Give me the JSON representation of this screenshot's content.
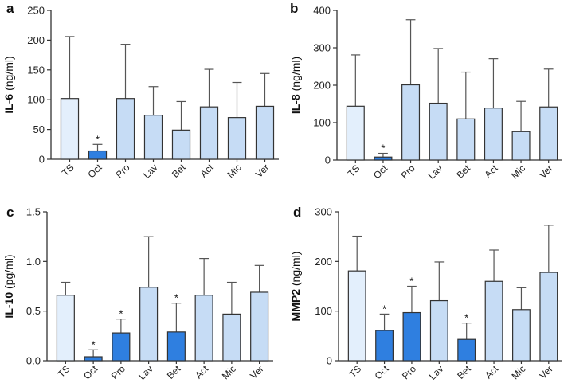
{
  "chart_data": [
    {
      "type": "bar",
      "panel": "a",
      "ylabel_bold": "IL-6",
      "ylabel_unit": " (ng/ml)",
      "ylim": [
        0,
        250
      ],
      "yticks": [
        0,
        50,
        100,
        150,
        200,
        250
      ],
      "ytick_labels": [
        "0",
        "50",
        "100",
        "150",
        "200",
        "250"
      ],
      "categories": [
        "TS",
        "Oct",
        "Pro",
        "Lav",
        "Bet",
        "Act",
        "Mic",
        "Ver"
      ],
      "values": [
        102,
        14,
        102,
        74,
        49,
        88,
        70,
        89
      ],
      "error_upper": [
        206,
        25,
        193,
        122,
        97,
        151,
        129,
        144
      ],
      "significant": [
        false,
        true,
        false,
        false,
        false,
        false,
        false,
        false
      ],
      "significance_marker": "*"
    },
    {
      "type": "bar",
      "panel": "b",
      "ylabel_bold": "IL-8",
      "ylabel_unit": " (ng/ml)",
      "ylim": [
        0,
        400
      ],
      "yticks": [
        0,
        100,
        200,
        300,
        400
      ],
      "ytick_labels": [
        "0",
        "100",
        "200",
        "300",
        "400"
      ],
      "categories": [
        "TS",
        "Oct",
        "Pro",
        "Lav",
        "Bet",
        "Act",
        "Mic",
        "Ver"
      ],
      "values": [
        144,
        8,
        201,
        152,
        110,
        139,
        76,
        142
      ],
      "error_upper": [
        281,
        18,
        375,
        298,
        235,
        271,
        157,
        243
      ],
      "significant": [
        false,
        true,
        false,
        false,
        false,
        false,
        false,
        false
      ],
      "significance_marker": "*"
    },
    {
      "type": "bar",
      "panel": "c",
      "ylabel_bold": "IL-10",
      "ylabel_unit": " (pg/ml)",
      "ylim": [
        0,
        1.5
      ],
      "yticks": [
        0,
        0.5,
        1.0,
        1.5
      ],
      "ytick_labels": [
        "0.0",
        "0.5",
        "1.0",
        "1.5"
      ],
      "categories": [
        "TS",
        "Oct",
        "Pro",
        "Lav",
        "Bet",
        "Act",
        "Mic",
        "Ver"
      ],
      "values": [
        0.66,
        0.04,
        0.28,
        0.74,
        0.29,
        0.66,
        0.47,
        0.69
      ],
      "error_upper": [
        0.79,
        0.11,
        0.42,
        1.25,
        0.58,
        1.03,
        0.79,
        0.96
      ],
      "significant": [
        false,
        true,
        true,
        false,
        true,
        false,
        false,
        false
      ],
      "significance_marker": "*"
    },
    {
      "type": "bar",
      "panel": "d",
      "ylabel_bold": "MMP2",
      "ylabel_unit": " (ng/ml)",
      "ylim": [
        0,
        300
      ],
      "yticks": [
        0,
        100,
        200,
        300
      ],
      "ytick_labels": [
        "0",
        "100",
        "200",
        "300"
      ],
      "categories": [
        "TS",
        "Oct",
        "Pro",
        "Lav",
        "Bet",
        "Act",
        "Mic",
        "Ver"
      ],
      "values": [
        181,
        61,
        97,
        121,
        43,
        160,
        103,
        178
      ],
      "error_upper": [
        251,
        94,
        150,
        199,
        76,
        223,
        147,
        273
      ],
      "significant": [
        false,
        true,
        true,
        false,
        true,
        false,
        false,
        false
      ],
      "significance_marker": "*"
    }
  ],
  "colors": {
    "control": "#e3effc",
    "significant": "#2f7fe0",
    "other": "#c6dcf5",
    "outline": "#333333",
    "error_bar": "#555555"
  }
}
